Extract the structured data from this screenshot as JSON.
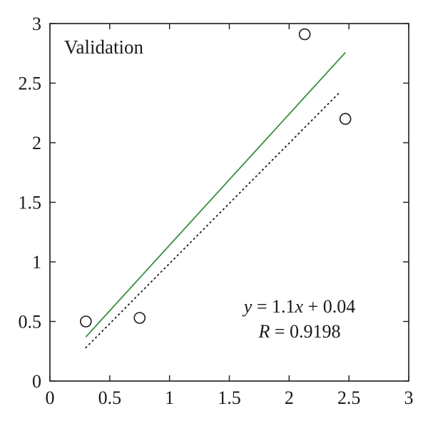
{
  "chart_data": {
    "type": "scatter",
    "title": "",
    "panel_label": "Validation",
    "xlabel": "",
    "ylabel": "",
    "xlim": [
      0,
      3
    ],
    "ylim": [
      0,
      3
    ],
    "x_ticks": [
      "0",
      "0.5",
      "1",
      "1.5",
      "2",
      "2.5",
      "3"
    ],
    "y_ticks": [
      "0",
      "0.5",
      "1",
      "1.5",
      "2",
      "2.5",
      "3"
    ],
    "grid": false,
    "points": [
      {
        "x": 0.3,
        "y": 0.5
      },
      {
        "x": 0.75,
        "y": 0.53
      },
      {
        "x": 2.13,
        "y": 2.91
      },
      {
        "x": 2.47,
        "y": 2.2
      }
    ],
    "fit_line": {
      "x": [
        0.3,
        2.47
      ],
      "slope": 1.1,
      "intercept": 0.04,
      "color": "#3a8f3e"
    },
    "reference_line": {
      "x": [
        0.3,
        2.43
      ],
      "y": [
        0.28,
        2.43
      ],
      "color": "#1a1a1a",
      "style": "dotted"
    },
    "annotation": {
      "eq_y": "y",
      "eq_rest": " = 1.1",
      "eq_x": "x",
      "eq_tail": " + 0.04",
      "r_label": "R",
      "r_value": " = 0.9198"
    }
  }
}
